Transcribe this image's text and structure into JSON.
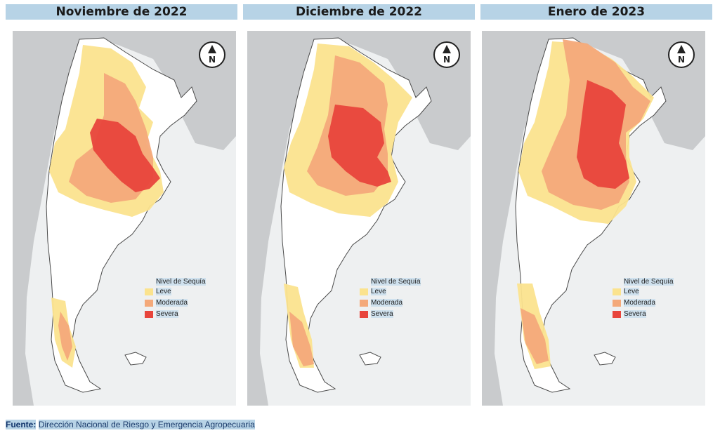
{
  "panels": [
    {
      "title": "Noviembre de 2022"
    },
    {
      "title": "Diciembre de 2022"
    },
    {
      "title": "Enero de 2023"
    }
  ],
  "north_arrow": {
    "label": "N"
  },
  "legend": {
    "title": "Nivel de Sequía",
    "items": [
      {
        "label": "Leve",
        "color": "#fbe38e"
      },
      {
        "label": "Moderada",
        "color": "#f4a97a"
      },
      {
        "label": "Severa",
        "color": "#e8453c"
      }
    ]
  },
  "source": {
    "prefix": "Fuente:",
    "text": "Dirección Nacional de Riesgo y Emergencia Agropecuaria"
  },
  "colors": {
    "neighbor": "#c9cbcd",
    "sea": "#eef0f1",
    "land": "#ffffff",
    "border": "#4a4a4a",
    "title_bg": "#b7d3e6"
  }
}
